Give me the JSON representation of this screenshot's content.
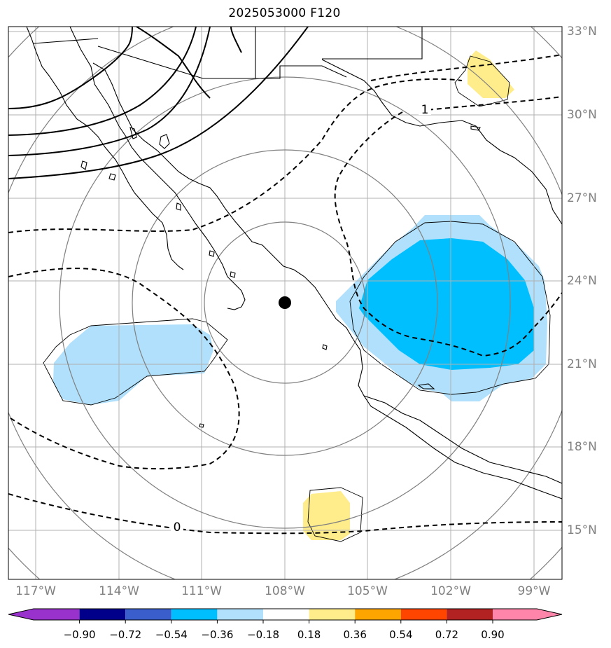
{
  "title": "2025053000 F120",
  "lat_ticks": [
    "33°N",
    "30°N",
    "27°N",
    "24°N",
    "21°N",
    "18°N",
    "15°N"
  ],
  "lon_ticks": [
    "117°W",
    "114°W",
    "111°W",
    "108°W",
    "105°W",
    "102°W",
    "99°W"
  ],
  "contour_labels": [
    "1",
    "0"
  ],
  "colorbar": {
    "tick_labels": [
      "−0.90",
      "−0.72",
      "−0.54",
      "−0.36",
      "−0.18",
      "0.18",
      "0.36",
      "0.54",
      "0.72",
      "0.90"
    ],
    "colors": [
      "#9932cc",
      "#00008b",
      "#3a5fcd",
      "#00bfff",
      "#b0e0fb",
      "#ffffff",
      "#ffec8b",
      "#ffa500",
      "#ff4500",
      "#b22222",
      "#ff85aa"
    ]
  },
  "map_colors": {
    "light_blue": "#b0e0fb",
    "deep_sky_blue": "#00bfff",
    "light_yellow": "#ffec8b",
    "range_rings": "#808080",
    "grid": "#b0b0b0"
  },
  "storm_center": {
    "lon": -108,
    "lat": 23.2
  }
}
